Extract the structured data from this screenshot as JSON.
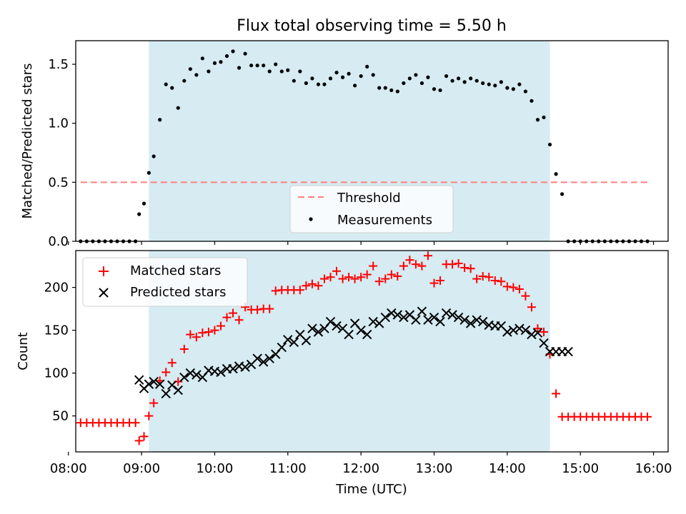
{
  "title": "Flux total observing time = 5.50 h",
  "colors": {
    "shade": "#add8e6",
    "threshold": "#ff7f7f",
    "measurements": "#000000",
    "matched": "#ff0000",
    "predicted": "#000000"
  },
  "chart_data": [
    {
      "type": "scatter",
      "panel": "top",
      "ylabel": "Matched/Predicted stars",
      "ylim": [
        0,
        1.7
      ],
      "yticks": [
        0.0,
        0.5,
        1.0,
        1.5
      ],
      "ytick_labels": [
        "0.0",
        "0.5",
        "1.0",
        "1.5"
      ],
      "xlim": [
        "08:06",
        "16:12"
      ],
      "grid": false,
      "legend": {
        "position": "lower-center",
        "entries": [
          "Threshold",
          "Measurements"
        ]
      },
      "shaded_span": [
        "09:06",
        "14:35"
      ],
      "threshold": {
        "name": "Threshold",
        "value": 0.5,
        "x": [
          "08:10",
          "15:58"
        ]
      },
      "series": [
        {
          "name": "Measurements",
          "x": [
            "08:10",
            "08:15",
            "08:20",
            "08:25",
            "08:30",
            "08:35",
            "08:40",
            "08:45",
            "08:50",
            "08:55",
            "08:58",
            "09:02",
            "09:06",
            "09:10",
            "09:15",
            "09:20",
            "09:25",
            "09:30",
            "09:35",
            "09:40",
            "09:45",
            "09:50",
            "09:55",
            "10:00",
            "10:05",
            "10:10",
            "10:15",
            "10:20",
            "10:25",
            "10:30",
            "10:35",
            "10:40",
            "10:45",
            "10:50",
            "10:55",
            "11:00",
            "11:05",
            "11:10",
            "11:15",
            "11:20",
            "11:25",
            "11:30",
            "11:35",
            "11:40",
            "11:45",
            "11:50",
            "11:55",
            "12:00",
            "12:05",
            "12:10",
            "12:15",
            "12:20",
            "12:25",
            "12:30",
            "12:35",
            "12:40",
            "12:45",
            "12:50",
            "12:55",
            "13:00",
            "13:05",
            "13:10",
            "13:15",
            "13:20",
            "13:25",
            "13:30",
            "13:35",
            "13:40",
            "13:45",
            "13:50",
            "13:55",
            "14:00",
            "14:05",
            "14:10",
            "14:15",
            "14:20",
            "14:25",
            "14:30",
            "14:35",
            "14:40",
            "14:45",
            "14:50",
            "14:55",
            "15:00",
            "15:05",
            "15:10",
            "15:15",
            "15:20",
            "15:25",
            "15:30",
            "15:35",
            "15:40",
            "15:45",
            "15:50",
            "15:55"
          ],
          "y": [
            0,
            0,
            0,
            0,
            0,
            0,
            0,
            0,
            0,
            0,
            0.23,
            0.32,
            0.58,
            0.72,
            1.03,
            1.33,
            1.3,
            1.13,
            1.36,
            1.46,
            1.41,
            1.55,
            1.44,
            1.51,
            1.52,
            1.57,
            1.61,
            1.47,
            1.59,
            1.49,
            1.49,
            1.49,
            1.44,
            1.5,
            1.44,
            1.45,
            1.36,
            1.44,
            1.34,
            1.38,
            1.33,
            1.33,
            1.38,
            1.43,
            1.39,
            1.42,
            1.32,
            1.4,
            1.48,
            1.41,
            1.3,
            1.3,
            1.28,
            1.27,
            1.34,
            1.38,
            1.41,
            1.34,
            1.39,
            1.29,
            1.28,
            1.4,
            1.36,
            1.38,
            1.35,
            1.38,
            1.36,
            1.34,
            1.33,
            1.32,
            1.35,
            1.3,
            1.29,
            1.33,
            1.27,
            1.19,
            1.03,
            1.05,
            0.82,
            0.57,
            0.4,
            0,
            0,
            0,
            0,
            0,
            0,
            0,
            0,
            0,
            0,
            0,
            0,
            0,
            0
          ]
        }
      ]
    },
    {
      "type": "scatter",
      "panel": "bottom",
      "xlabel": "Time (UTC)",
      "ylabel": "Count",
      "ylim": [
        8,
        243
      ],
      "yticks": [
        50,
        100,
        150,
        200
      ],
      "ytick_labels": [
        "50",
        "100",
        "150",
        "200"
      ],
      "xlim": [
        "08:06",
        "16:12"
      ],
      "xticks": [
        "08:00",
        "09:00",
        "10:00",
        "11:00",
        "12:00",
        "13:00",
        "14:00",
        "15:00",
        "16:00"
      ],
      "xtick_labels": [
        "08:00",
        "09:00",
        "10:00",
        "11:00",
        "12:00",
        "13:00",
        "14:00",
        "15:00",
        "16:00"
      ],
      "grid": false,
      "legend": {
        "position": "upper-left",
        "entries": [
          "Matched stars",
          "Predicted stars"
        ]
      },
      "shaded_span": [
        "09:06",
        "14:35"
      ],
      "series": [
        {
          "name": "Matched stars",
          "marker": "+",
          "x": [
            "08:10",
            "08:15",
            "08:20",
            "08:25",
            "08:30",
            "08:35",
            "08:40",
            "08:45",
            "08:50",
            "08:55",
            "08:58",
            "09:02",
            "09:06",
            "09:10",
            "09:15",
            "09:20",
            "09:25",
            "09:30",
            "09:35",
            "09:40",
            "09:45",
            "09:50",
            "09:55",
            "10:00",
            "10:05",
            "10:10",
            "10:15",
            "10:20",
            "10:25",
            "10:30",
            "10:35",
            "10:40",
            "10:45",
            "10:50",
            "10:55",
            "11:00",
            "11:05",
            "11:10",
            "11:15",
            "11:20",
            "11:25",
            "11:30",
            "11:35",
            "11:40",
            "11:45",
            "11:50",
            "11:55",
            "12:00",
            "12:05",
            "12:10",
            "12:15",
            "12:20",
            "12:25",
            "12:30",
            "12:35",
            "12:40",
            "12:45",
            "12:50",
            "12:55",
            "13:00",
            "13:05",
            "13:10",
            "13:15",
            "13:20",
            "13:25",
            "13:30",
            "13:35",
            "13:40",
            "13:45",
            "13:50",
            "13:55",
            "14:00",
            "14:05",
            "14:10",
            "14:15",
            "14:20",
            "14:25",
            "14:30",
            "14:35",
            "14:40",
            "14:45",
            "14:50",
            "14:55",
            "15:00",
            "15:05",
            "15:10",
            "15:15",
            "15:20",
            "15:25",
            "15:30",
            "15:35",
            "15:40",
            "15:45",
            "15:50",
            "15:55"
          ],
          "y": [
            42,
            42,
            42,
            42,
            42,
            42,
            42,
            42,
            42,
            42,
            21,
            26,
            50,
            65,
            91,
            101,
            112,
            90,
            128,
            145,
            142,
            147,
            148,
            150,
            155,
            165,
            170,
            162,
            177,
            174,
            174,
            175,
            175,
            196,
            197,
            197,
            197,
            197,
            202,
            204,
            202,
            210,
            212,
            219,
            210,
            212,
            210,
            212,
            215,
            225,
            207,
            210,
            215,
            213,
            225,
            232,
            227,
            225,
            237,
            205,
            208,
            227,
            227,
            228,
            223,
            222,
            210,
            213,
            212,
            208,
            207,
            201,
            200,
            198,
            190,
            177,
            152,
            148,
            122,
            76,
            49,
            49,
            49,
            49,
            49,
            49,
            49,
            49,
            49,
            49,
            49,
            49,
            49,
            49,
            49
          ]
        },
        {
          "name": "Predicted stars",
          "marker": "x",
          "x": [
            "08:58",
            "09:02",
            "09:06",
            "09:10",
            "09:15",
            "09:20",
            "09:25",
            "09:30",
            "09:35",
            "09:40",
            "09:45",
            "09:50",
            "09:55",
            "10:00",
            "10:05",
            "10:10",
            "10:15",
            "10:20",
            "10:25",
            "10:30",
            "10:35",
            "10:40",
            "10:45",
            "10:50",
            "10:55",
            "11:00",
            "11:05",
            "11:10",
            "11:15",
            "11:20",
            "11:25",
            "11:30",
            "11:35",
            "11:40",
            "11:45",
            "11:50",
            "11:55",
            "12:00",
            "12:05",
            "12:10",
            "12:15",
            "12:20",
            "12:25",
            "12:30",
            "12:35",
            "12:40",
            "12:45",
            "12:50",
            "12:55",
            "13:00",
            "13:05",
            "13:10",
            "13:15",
            "13:20",
            "13:25",
            "13:30",
            "13:35",
            "13:40",
            "13:45",
            "13:50",
            "13:55",
            "14:00",
            "14:05",
            "14:10",
            "14:15",
            "14:20",
            "14:25",
            "14:30",
            "14:35",
            "14:40",
            "14:45",
            "14:50"
          ],
          "y": [
            92,
            82,
            87,
            90,
            87,
            76,
            86,
            80,
            95,
            100,
            98,
            95,
            103,
            102,
            101,
            105,
            105,
            108,
            107,
            110,
            117,
            113,
            117,
            122,
            130,
            139,
            136,
            145,
            138,
            152,
            148,
            152,
            160,
            155,
            152,
            145,
            158,
            150,
            145,
            160,
            158,
            165,
            170,
            168,
            165,
            168,
            162,
            172,
            162,
            165,
            160,
            170,
            168,
            165,
            162,
            158,
            162,
            160,
            156,
            155,
            155,
            148,
            150,
            152,
            150,
            145,
            147,
            135,
            125,
            125,
            125,
            125
          ]
        }
      ]
    }
  ]
}
